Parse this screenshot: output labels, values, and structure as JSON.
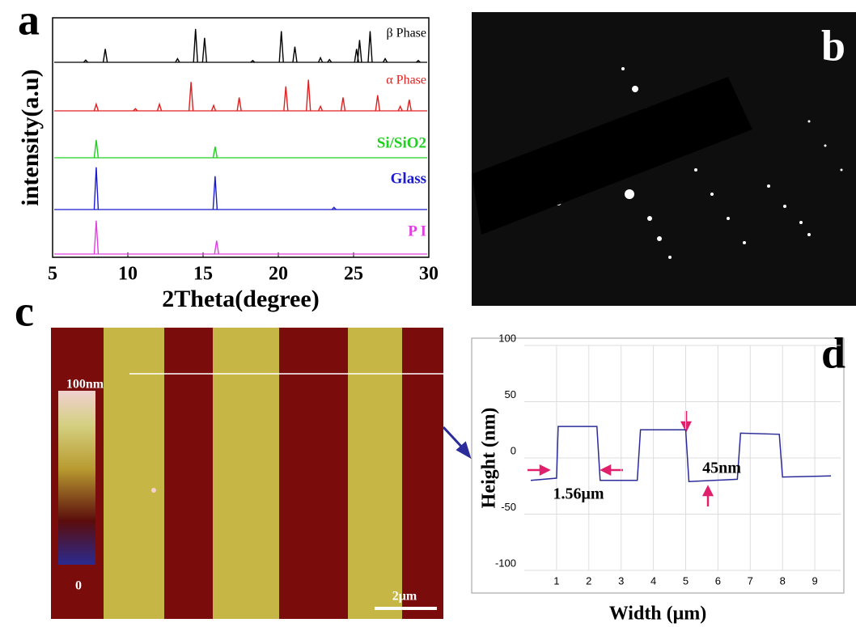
{
  "panel_labels": [
    "a",
    "b",
    "c",
    "d"
  ],
  "afm": {
    "scale_max": "100nm",
    "scale_min": "0",
    "scale_bar": "2μm"
  },
  "chart_data": [
    {
      "type": "spectrum",
      "xlabel": "2Theta(degree)",
      "ylabel": "intensity(a.u)",
      "xlim": [
        5,
        30
      ],
      "xticks": [
        5,
        10,
        15,
        20,
        25,
        30
      ],
      "series": [
        {
          "name": "β Phase",
          "color": "#000000",
          "x": [
            7.2,
            8.5,
            13.3,
            14.5,
            15.1,
            18.3,
            20.2,
            21.1,
            22.8,
            23.4,
            25.2,
            25.4,
            26.1,
            27.1,
            29.3
          ],
          "values": [
            5,
            30,
            8,
            75,
            55,
            4,
            70,
            35,
            10,
            6,
            30,
            50,
            70,
            8,
            4
          ]
        },
        {
          "name": "α Phase",
          "color": "#e02020",
          "x": [
            7.9,
            10.5,
            12.1,
            14.2,
            15.7,
            17.4,
            20.5,
            22.0,
            22.8,
            24.3,
            26.6,
            28.1,
            28.7
          ],
          "values": [
            15,
            5,
            15,
            65,
            12,
            30,
            55,
            70,
            10,
            30,
            35,
            10,
            25
          ]
        },
        {
          "name": "Si/SiO2",
          "color": "#20d020",
          "x": [
            7.9,
            15.8
          ],
          "values": [
            40,
            25
          ]
        },
        {
          "name": "Glass",
          "color": "#1a1ad0",
          "x": [
            7.9,
            15.8,
            23.7
          ],
          "values": [
            95,
            75,
            5
          ]
        },
        {
          "name": "P I",
          "color": "#e040e0",
          "x": [
            7.9,
            15.9
          ],
          "values": [
            75,
            30
          ]
        }
      ]
    },
    {
      "type": "line",
      "xlabel": "Width (μm)",
      "ylabel": "Height (nm)",
      "xlim": [
        0,
        9.8
      ],
      "ylim": [
        -100,
        100
      ],
      "xticks": [
        1,
        2,
        3,
        4,
        5,
        6,
        7,
        8,
        9
      ],
      "yticks": [
        -100,
        -50,
        0,
        50,
        100
      ],
      "grid": true,
      "series": [
        {
          "color": "#2b2b9a",
          "x": [
            0.2,
            1.0,
            1.05,
            2.25,
            2.35,
            3.5,
            3.6,
            5.0,
            5.1,
            6.6,
            6.7,
            7.9,
            8.0,
            9.5
          ],
          "values": [
            -20,
            -18,
            28,
            28,
            -20,
            -20,
            25,
            25,
            -21,
            -19,
            22,
            21,
            -17,
            -16
          ]
        }
      ],
      "annotations": [
        "1.56μm",
        "45nm"
      ]
    }
  ]
}
